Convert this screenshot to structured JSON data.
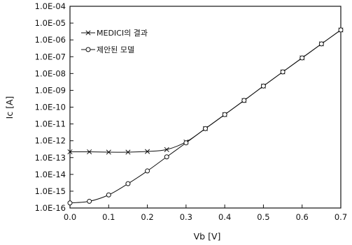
{
  "chart_data": {
    "type": "line",
    "title": "",
    "xlabel": "Vb [V]",
    "ylabel": "Ic [A]",
    "xlim": [
      0.0,
      0.7
    ],
    "ylim": [
      1e-16,
      0.0001
    ],
    "yscale": "log",
    "grid": false,
    "legend": "top-left",
    "x_ticks": [
      "0.0",
      "0.1",
      "0.2",
      "0.3",
      "0.4",
      "0.5",
      "0.6",
      "0.7"
    ],
    "y_ticks": [
      "1.0E-16",
      "1.0E-15",
      "1.0E-14",
      "1.0E-13",
      "1.0E-12",
      "1.0E-11",
      "1.0E-10",
      "1.0E-09",
      "1.0E-08",
      "1.0E-07",
      "1.0E-06",
      "1.0E-05",
      "1.0E-04"
    ],
    "x": [
      0.0,
      0.05,
      0.1,
      0.15,
      0.2,
      0.25,
      0.3,
      0.35,
      0.4,
      0.45,
      0.5,
      0.55,
      0.6,
      0.65,
      0.7
    ],
    "series": [
      {
        "name": "MEDICI의 결과",
        "marker": "x",
        "values": [
          2.2e-13,
          2.2e-13,
          2.1e-13,
          2.1e-13,
          2.3e-13,
          3e-13,
          8.5e-13,
          5.3e-12,
          3.6e-11,
          2.5e-10,
          1.8e-09,
          1.25e-08,
          8.5e-08,
          5.8e-07,
          3.9e-06
        ]
      },
      {
        "name": "제안된 모델",
        "marker": "circle",
        "values": [
          2e-16,
          2.5e-16,
          6e-16,
          2.8e-15,
          1.6e-14,
          1.1e-13,
          7.5e-13,
          5.3e-12,
          3.6e-11,
          2.5e-10,
          1.8e-09,
          1.25e-08,
          8.5e-08,
          5.8e-07,
          3.9e-06
        ]
      }
    ]
  }
}
